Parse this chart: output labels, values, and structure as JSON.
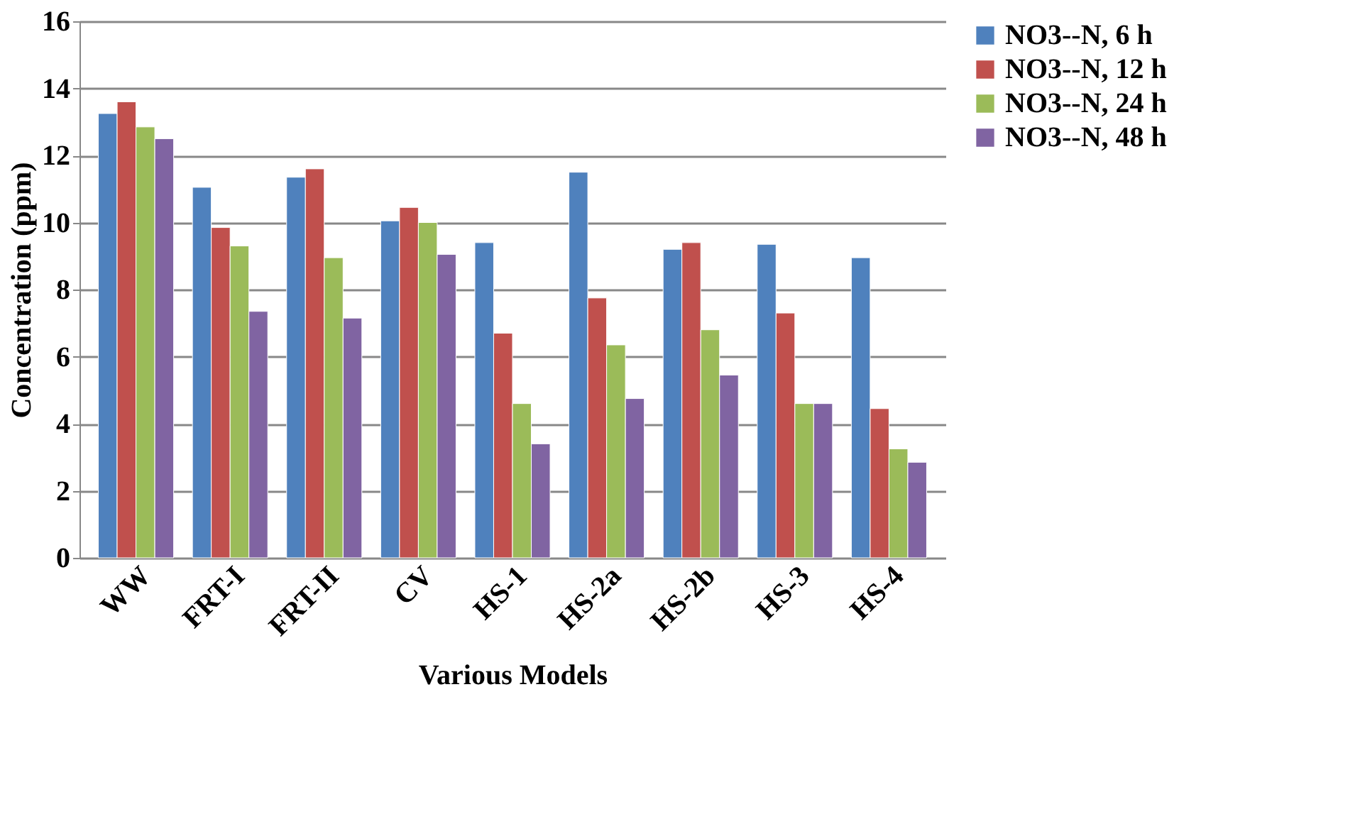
{
  "chart_data": {
    "type": "bar",
    "xlabel": "Various Models",
    "ylabel": "Concentration (ppm)",
    "categories": [
      "WW",
      "FRT-I",
      "FRT-II",
      "CV",
      "HS-1",
      "HS-2a",
      "HS-2b",
      "HS-3",
      "HS-4"
    ],
    "series": [
      {
        "name": "NO3--N, 6 h",
        "color": "#4f81bd",
        "values": [
          13.25,
          11.05,
          11.35,
          10.05,
          9.4,
          11.5,
          9.2,
          9.35,
          8.95
        ]
      },
      {
        "name": "NO3--N, 12 h",
        "color": "#c0504d",
        "values": [
          13.6,
          9.85,
          11.6,
          10.45,
          6.7,
          7.75,
          9.4,
          7.3,
          4.45
        ]
      },
      {
        "name": "NO3--N, 24 h",
        "color": "#9bbb59",
        "values": [
          12.85,
          9.3,
          8.95,
          10.0,
          4.6,
          6.35,
          6.8,
          4.6,
          3.25
        ]
      },
      {
        "name": "NO3--N, 48 h",
        "color": "#8064a2",
        "values": [
          12.5,
          7.35,
          7.15,
          9.05,
          3.4,
          4.75,
          5.45,
          4.6,
          2.85
        ]
      }
    ],
    "ylim": [
      0,
      16
    ],
    "yticks": [
      0,
      2,
      4,
      6,
      8,
      10,
      12,
      14,
      16
    ],
    "grid": "y",
    "legend": "right"
  }
}
